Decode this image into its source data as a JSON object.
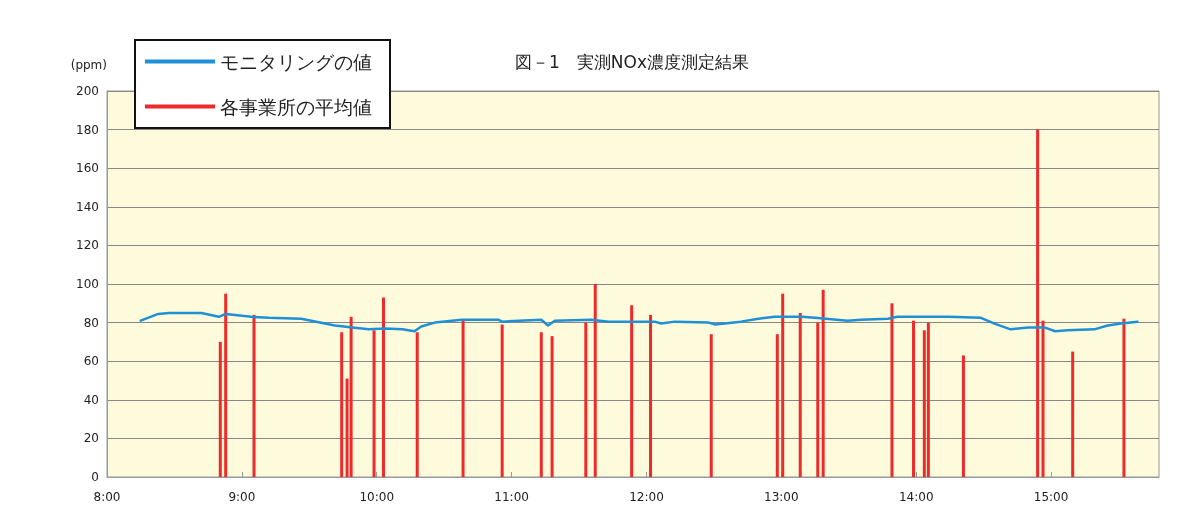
{
  "chart_data": {
    "type": "line",
    "title": "図－1　実測NOx濃度測定結果",
    "ylabel": "(ppm)",
    "xlim": [
      8,
      15.8
    ],
    "xticks": [
      {
        "value": 8,
        "label": "8:00"
      },
      {
        "value": 9,
        "label": "9:00"
      },
      {
        "value": 10,
        "label": "10:00"
      },
      {
        "value": 11,
        "label": "11:00"
      },
      {
        "value": 12,
        "label": "12:00"
      },
      {
        "value": 13,
        "label": "13:00"
      },
      {
        "value": 14,
        "label": "14:00"
      },
      {
        "value": 15,
        "label": "15:00"
      }
    ],
    "ylim": [
      0,
      200
    ],
    "yticks": [
      0,
      20,
      40,
      60,
      80,
      100,
      120,
      140,
      160,
      180,
      200
    ],
    "grid": "y",
    "legend": "top left",
    "marker": "none",
    "line_style": "solid",
    "series": [
      {
        "name": "モニタリングの値",
        "color": "#1f8fd6",
        "x": [
          8.25,
          8.38,
          8.46,
          8.7,
          8.83,
          8.88,
          9.07,
          9.2,
          9.44,
          9.69,
          9.82,
          9.94,
          10.06,
          10.19,
          10.28,
          10.33,
          10.43,
          10.63,
          10.9,
          10.93,
          11.22,
          11.27,
          11.32,
          11.59,
          11.72,
          12.06,
          12.11,
          12.21,
          12.46,
          12.51,
          12.58,
          12.7,
          12.83,
          12.95,
          13.15,
          13.25,
          13.49,
          13.59,
          13.79,
          13.86,
          14.04,
          14.24,
          14.48,
          14.58,
          14.7,
          14.83,
          14.95,
          15.03,
          15.12,
          15.32,
          15.42,
          15.52,
          15.64
        ],
        "values": [
          81,
          84.5,
          85,
          85,
          83,
          84.5,
          83,
          82.5,
          82,
          78.5,
          77.5,
          76.5,
          77,
          76.5,
          75.5,
          78,
          80,
          81.5,
          81.5,
          80.5,
          81.5,
          78.5,
          81,
          81.5,
          80.5,
          80.5,
          79.5,
          80.5,
          80,
          79,
          79.5,
          80.5,
          82,
          83,
          83,
          82.5,
          81,
          81.5,
          82,
          83,
          83,
          83,
          82.5,
          79.5,
          76.5,
          77.5,
          77.5,
          75.5,
          76,
          76.5,
          78.5,
          79.5,
          80.5
        ]
      },
      {
        "name": "各事業所の平均値",
        "type": "bar",
        "color": "#ee2a2a",
        "x": [
          8.84,
          8.88,
          9.09,
          9.74,
          9.78,
          9.81,
          9.98,
          10.05,
          10.3,
          10.64,
          10.93,
          11.22,
          11.3,
          11.55,
          11.62,
          11.89,
          12.03,
          12.48,
          12.97,
          13.01,
          13.14,
          13.27,
          13.31,
          13.82,
          13.98,
          14.06,
          14.09,
          14.35,
          14.9,
          14.94,
          15.16,
          15.54
        ],
        "values": [
          70,
          95,
          84,
          75,
          51,
          83,
          76,
          93,
          75,
          81,
          79,
          75,
          73,
          80,
          100,
          89,
          84,
          74,
          74,
          95,
          85,
          80,
          97,
          90,
          81,
          76,
          80,
          63,
          180,
          81,
          65,
          82
        ]
      }
    ]
  }
}
